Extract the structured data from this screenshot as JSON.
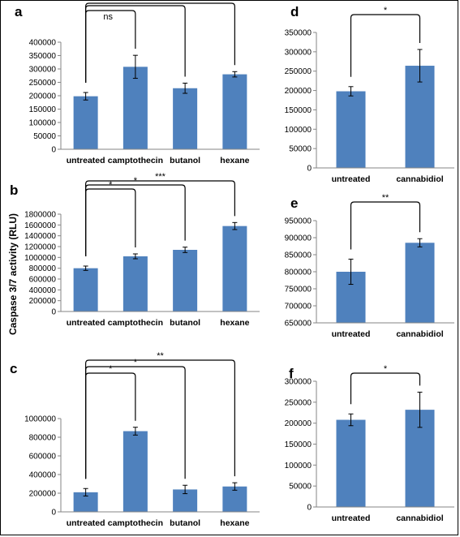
{
  "y_axis_label": "Caspase 3/7 activity (RLU)",
  "colors": {
    "bar": "#4F81BD",
    "axis": "#868686",
    "ink": "#000000"
  },
  "chart_data": [
    {
      "type": "bar",
      "panel": "a",
      "categories": [
        "untreated",
        "camptothecin",
        "butanol",
        "hexane"
      ],
      "values": [
        198000,
        308000,
        228000,
        280000
      ],
      "errors": [
        14000,
        43000,
        19000,
        10000
      ],
      "ylim": [
        0,
        400000
      ],
      "ytick_step": 50000,
      "ytick_labels": [
        "0",
        "50000",
        "100000",
        "150000",
        "200000",
        "250000",
        "300000",
        "350000",
        "400000"
      ],
      "brackets": [
        {
          "from": 0,
          "to": 1,
          "label": "ns"
        },
        {
          "from": 0,
          "to": 2,
          "label": "***"
        },
        {
          "from": 0,
          "to": 3,
          "label": "*"
        }
      ]
    },
    {
      "type": "bar",
      "panel": "b",
      "categories": [
        "untreated",
        "camptothecin",
        "butanol",
        "hexane"
      ],
      "values": [
        800000,
        1020000,
        1140000,
        1580000
      ],
      "errors": [
        40000,
        45000,
        50000,
        65000
      ],
      "ylim": [
        0,
        1800000
      ],
      "ytick_step": 200000,
      "ytick_labels": [
        "0",
        "200000",
        "400000",
        "600000",
        "800000",
        "1000000",
        "1200000",
        "1400000",
        "1600000",
        "1800000"
      ],
      "brackets": [
        {
          "from": 0,
          "to": 1,
          "label": "*"
        },
        {
          "from": 0,
          "to": 2,
          "label": "*"
        },
        {
          "from": 0,
          "to": 3,
          "label": "***"
        }
      ]
    },
    {
      "type": "bar",
      "panel": "c",
      "categories": [
        "untreated",
        "camptothecin",
        "butanol",
        "hexane"
      ],
      "values": [
        210000,
        865000,
        240000,
        272000
      ],
      "errors": [
        40000,
        42000,
        45000,
        40000
      ],
      "ylim": [
        0,
        1000000
      ],
      "ytick_step": 200000,
      "ytick_labels": [
        "0",
        "200000",
        "400000",
        "600000",
        "800000",
        "1000000"
      ],
      "brackets": [
        {
          "from": 0,
          "to": 1,
          "label": "*"
        },
        {
          "from": 0,
          "to": 2,
          "label": "*"
        },
        {
          "from": 0,
          "to": 3,
          "label": "**"
        }
      ]
    },
    {
      "type": "bar",
      "panel": "d",
      "categories": [
        "untreated",
        "cannabidiol"
      ],
      "values": [
        198000,
        264000
      ],
      "errors": [
        12000,
        42000
      ],
      "ylim": [
        0,
        350000
      ],
      "ytick_step": 50000,
      "ytick_labels": [
        "0",
        "50000",
        "100000",
        "150000",
        "200000",
        "250000",
        "300000",
        "350000"
      ],
      "brackets": [
        {
          "from": 0,
          "to": 1,
          "label": "*"
        }
      ]
    },
    {
      "type": "bar",
      "panel": "e",
      "categories": [
        "untreated",
        "cannabidiol"
      ],
      "values": [
        800000,
        885000
      ],
      "errors": [
        37000,
        12000
      ],
      "ylim": [
        650000,
        950000
      ],
      "ytick_step": 50000,
      "ytick_labels": [
        "650000",
        "700000",
        "750000",
        "800000",
        "850000",
        "900000",
        "950000"
      ],
      "brackets": [
        {
          "from": 0,
          "to": 1,
          "label": "**"
        }
      ]
    },
    {
      "type": "bar",
      "panel": "f",
      "categories": [
        "untreated",
        "cannabidiol"
      ],
      "values": [
        208000,
        232000
      ],
      "errors": [
        14000,
        42000
      ],
      "ylim": [
        0,
        300000
      ],
      "ytick_step": 50000,
      "ytick_labels": [
        "0",
        "50000",
        "100000",
        "150000",
        "200000",
        "250000",
        "300000"
      ],
      "brackets": [
        {
          "from": 0,
          "to": 1,
          "label": "*"
        }
      ]
    }
  ]
}
